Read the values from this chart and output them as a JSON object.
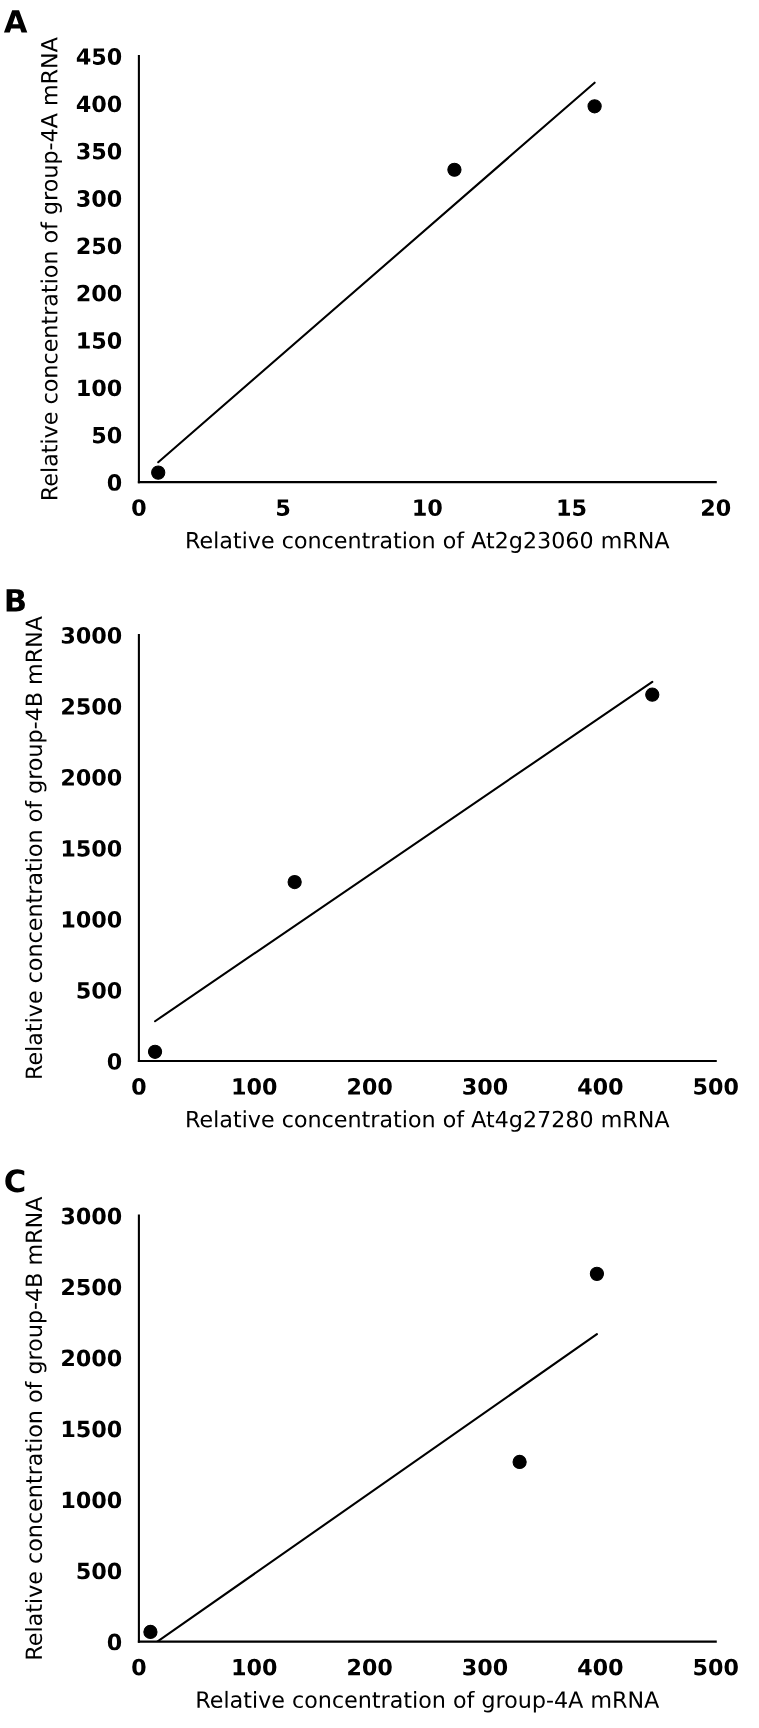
{
  "chart_data": [
    {
      "type": "scatter",
      "title": "A",
      "xlabel": "Relative concentration of At2g23060 mRNA",
      "ylabel": "Relative concentration of group-4A mRNA",
      "xlim": [
        0,
        20
      ],
      "xticks": [
        0,
        5,
        10,
        15,
        20
      ],
      "ylim": [
        0,
        450
      ],
      "yticks": [
        0,
        50,
        100,
        150,
        200,
        250,
        300,
        350,
        400,
        450
      ],
      "grid": false,
      "legend": false,
      "series": [
        {
          "color": "#000000",
          "marker": "circle",
          "x": [
            0.67,
            10.94,
            15.8
          ],
          "values": [
            10,
            330,
            397
          ]
        },
        {
          "type": "line",
          "color": "#000000",
          "marker": "none",
          "line_style": "solid",
          "x": [
            0.67,
            15.8
          ],
          "values": [
            21,
            422
          ]
        }
      ]
    },
    {
      "type": "scatter",
      "title": "B",
      "xlabel": "Relative concentration of At4g27280 mRNA",
      "ylabel": "Relative concentration of group-4B mRNA",
      "xlim": [
        0,
        500
      ],
      "xticks": [
        0,
        100,
        200,
        300,
        400,
        500
      ],
      "ylim": [
        0,
        3000
      ],
      "yticks": [
        0,
        500,
        1000,
        1500,
        2000,
        2500,
        3000
      ],
      "grid": false,
      "legend": false,
      "series": [
        {
          "color": "#000000",
          "marker": "circle",
          "x": [
            14,
            135,
            445
          ],
          "values": [
            65,
            1260,
            2580
          ]
        },
        {
          "type": "line",
          "color": "#000000",
          "marker": "none",
          "line_style": "solid",
          "x": [
            14,
            445
          ],
          "values": [
            280,
            2670
          ]
        }
      ]
    },
    {
      "type": "scatter",
      "title": "C",
      "xlabel": "Relative concentration of group-4A mRNA",
      "ylabel": "Relative concentration of group-4B mRNA",
      "xlim": [
        0,
        500
      ],
      "xticks": [
        0,
        100,
        200,
        300,
        400,
        500
      ],
      "ylim": [
        0,
        3000
      ],
      "yticks": [
        0,
        500,
        1000,
        1500,
        2000,
        2500,
        3000
      ],
      "grid": false,
      "legend": false,
      "series": [
        {
          "color": "#000000",
          "marker": "circle",
          "x": [
            10,
            330,
            397
          ],
          "values": [
            68,
            1265,
            2590
          ]
        },
        {
          "type": "line",
          "color": "#000000",
          "marker": "none",
          "line_style": "solid",
          "x": [
            16,
            397
          ],
          "values": [
            0,
            2165
          ]
        }
      ]
    }
  ]
}
